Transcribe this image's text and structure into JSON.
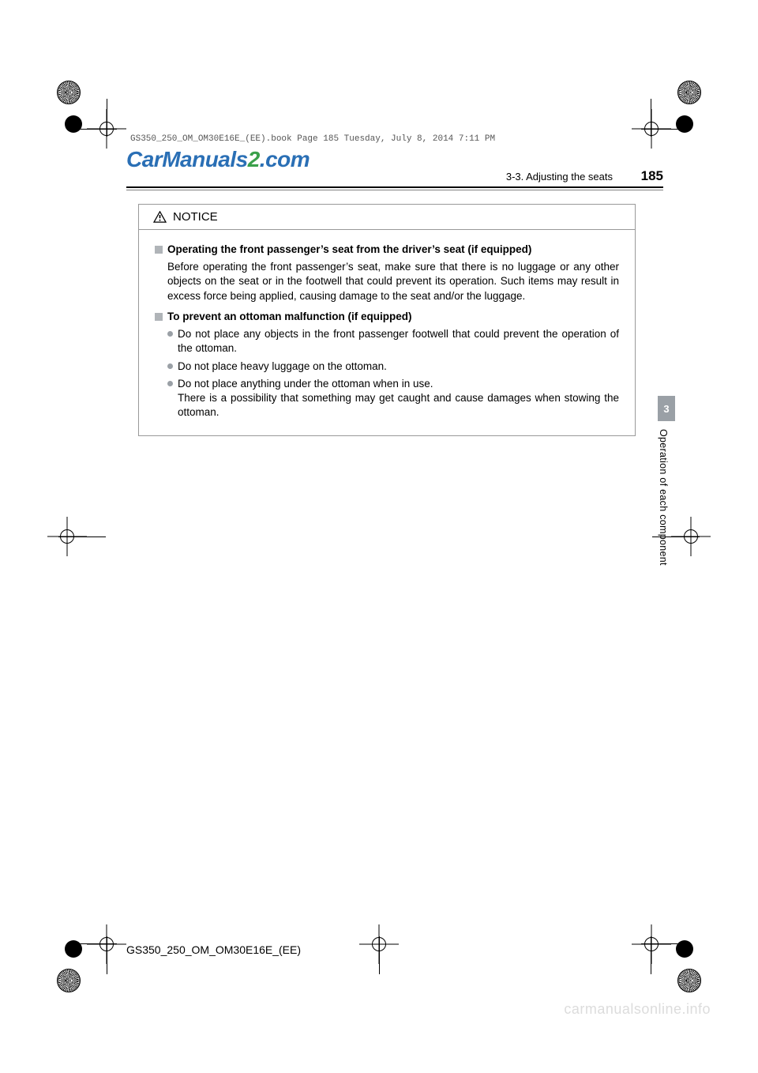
{
  "meta": {
    "book_header": "GS350_250_OM_OM30E16E_(EE).book  Page 185  Tuesday, July 8, 2014  7:11 PM",
    "watermark_top_1": "CarManuals",
    "watermark_top_2": "2",
    "watermark_top_3": ".com",
    "watermark_bottom": "carmanualsonline.info",
    "doc_id": "GS350_250_OM_OM30E16E_(EE)"
  },
  "header": {
    "section": "3-3. Adjusting the seats",
    "page_number": "185"
  },
  "side_tab": {
    "number": "3",
    "label": "Operation of each component"
  },
  "notice": {
    "title": "NOTICE",
    "sections": [
      {
        "heading": "Operating the front passenger’s seat from the driver’s seat (if equipped)",
        "paragraph": "Before operating the front passenger’s seat, make sure that there is no luggage or any other objects on the seat or in the footwell that could prevent its operation. Such items may result in excess force being applied, causing damage to the seat and/or the luggage."
      },
      {
        "heading": "To prevent an ottoman malfunction (if equipped)",
        "bullets": [
          "Do not place any objects in the front passenger footwell that could prevent the operation of the ottoman.",
          "Do not place heavy luggage on the ottoman.",
          "Do not place anything under the ottoman when in use.\nThere is a possibility that something may get caught and cause damages when stowing the ottoman."
        ]
      }
    ]
  },
  "colors": {
    "box_border": "#999999",
    "square_bullet": "#b0b4b8",
    "dot_bullet": "#9aa0a6",
    "side_tab_bg": "#9aa0a6",
    "watermark_bottom": "#dcdcdc",
    "wm_blue": "#2a6fb5",
    "wm_green": "#3aa04a"
  }
}
